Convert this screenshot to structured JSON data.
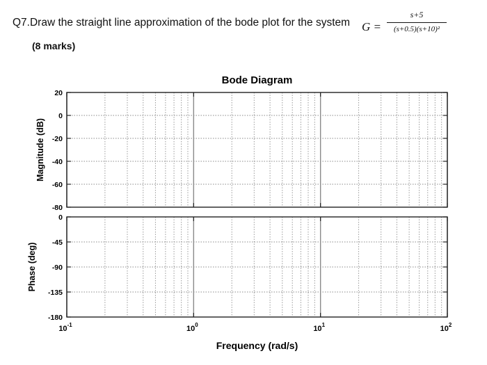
{
  "question": {
    "number": "Q7.",
    "text": "Draw the straight line approximation of the bode plot for the system",
    "equation_lhs": "G =",
    "tf_numerator": "s+5",
    "tf_denominator": "(s+0.5)(s+10)²",
    "marks": "(8 marks)"
  },
  "chart_data": {
    "type": "line",
    "title": "Bode Diagram",
    "xlabel": "Frequency (rad/s)",
    "x_scale": "log",
    "xlim": [
      0.1,
      100
    ],
    "x_ticks": [
      {
        "value": 0.1,
        "base": "10",
        "exp": "-1"
      },
      {
        "value": 1,
        "base": "10",
        "exp": "0"
      },
      {
        "value": 10,
        "base": "10",
        "exp": "1"
      },
      {
        "value": 100,
        "base": "10",
        "exp": "2"
      }
    ],
    "grid": true,
    "panels": [
      {
        "name": "magnitude",
        "ylabel": "Magnitude (dB)",
        "ylim": [
          -80,
          20
        ],
        "y_ticks": [
          20,
          0,
          -20,
          -40,
          -60,
          -80
        ],
        "series": []
      },
      {
        "name": "phase",
        "ylabel": "Phase (deg)",
        "ylim": [
          -180,
          0
        ],
        "y_ticks": [
          0,
          -45,
          -90,
          -135,
          -180
        ],
        "series": []
      }
    ]
  }
}
